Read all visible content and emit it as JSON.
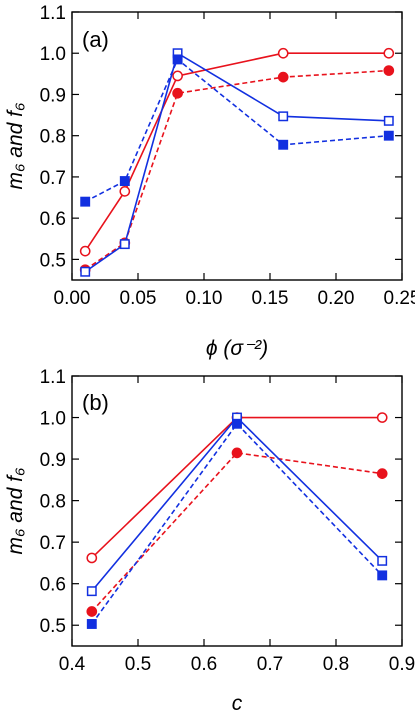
{
  "colors": {
    "red": "#e8121c",
    "blue": "#1230e0"
  },
  "chart_data": [
    {
      "type": "line",
      "panel_label": "(a)",
      "xlabel": "ϕ (σ⁻²)",
      "ylabel": "m₆ and f₆",
      "xlim": [
        0,
        0.25
      ],
      "ylim": [
        0.45,
        1.1
      ],
      "xticks": [
        0,
        0.05,
        0.1,
        0.15,
        0.2,
        0.25
      ],
      "xtick_labels": [
        "0.00",
        "0.05",
        "0.10",
        "0.15",
        "0.20",
        "0.25"
      ],
      "yticks": [
        0.5,
        0.6,
        0.7,
        0.8,
        0.9,
        1.0,
        1.1
      ],
      "ytick_labels": [
        "0.5",
        "0.6",
        "0.7",
        "0.8",
        "0.9",
        "1.0",
        "1.1"
      ],
      "series": [
        {
          "color": "red",
          "marker": "circle-open",
          "line": "solid",
          "x": [
            0.01,
            0.04,
            0.08,
            0.16,
            0.24
          ],
          "y": [
            0.52,
            0.665,
            0.945,
            1.0,
            1.0
          ]
        },
        {
          "color": "red",
          "marker": "circle-filled",
          "line": "dashed",
          "x": [
            0.01,
            0.04,
            0.08,
            0.16,
            0.24
          ],
          "y": [
            0.475,
            0.54,
            0.903,
            0.942,
            0.958
          ]
        },
        {
          "color": "blue",
          "marker": "square-open",
          "line": "solid",
          "x": [
            0.01,
            0.04,
            0.08,
            0.16,
            0.24
          ],
          "y": [
            0.47,
            0.537,
            1.0,
            0.847,
            0.836
          ]
        },
        {
          "color": "blue",
          "marker": "square-filled",
          "line": "dashed",
          "x": [
            0.01,
            0.04,
            0.08,
            0.16,
            0.24
          ],
          "y": [
            0.64,
            0.69,
            0.985,
            0.778,
            0.8
          ]
        }
      ]
    },
    {
      "type": "line",
      "panel_label": "(b)",
      "xlabel": "c",
      "ylabel": "m₆ and f₆",
      "xlim": [
        0.4,
        0.9
      ],
      "ylim": [
        0.45,
        1.1
      ],
      "xticks": [
        0.4,
        0.5,
        0.6,
        0.7,
        0.8,
        0.9
      ],
      "xtick_labels": [
        "0.4",
        "0.5",
        "0.6",
        "0.7",
        "0.8",
        "0.9"
      ],
      "yticks": [
        0.5,
        0.6,
        0.7,
        0.8,
        0.9,
        1.0,
        1.1
      ],
      "ytick_labels": [
        "0.5",
        "0.6",
        "0.7",
        "0.8",
        "0.9",
        "1.0",
        "1.1"
      ],
      "series": [
        {
          "color": "red",
          "marker": "circle-open",
          "line": "solid",
          "x": [
            0.43,
            0.65,
            0.87
          ],
          "y": [
            0.662,
            1.0,
            1.0
          ]
        },
        {
          "color": "red",
          "marker": "circle-filled",
          "line": "dashed",
          "x": [
            0.43,
            0.65,
            0.87
          ],
          "y": [
            0.533,
            0.915,
            0.865
          ]
        },
        {
          "color": "blue",
          "marker": "square-open",
          "line": "solid",
          "x": [
            0.43,
            0.65,
            0.87
          ],
          "y": [
            0.582,
            1.0,
            0.655
          ]
        },
        {
          "color": "blue",
          "marker": "square-filled",
          "line": "dashed",
          "x": [
            0.43,
            0.65,
            0.87
          ],
          "y": [
            0.503,
            0.985,
            0.62
          ]
        }
      ]
    }
  ]
}
